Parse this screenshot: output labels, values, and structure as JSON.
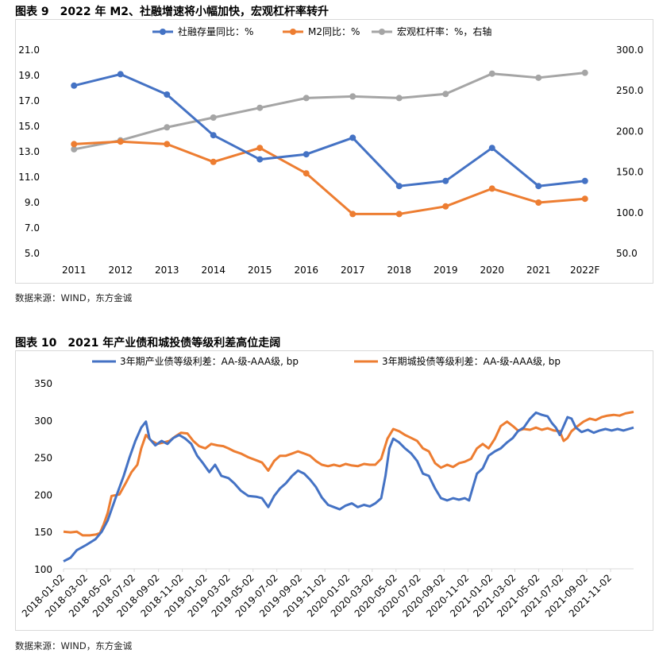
{
  "chart_data": [
    {
      "type": "line",
      "title": "图表 9　2022 年 M2、社融增速将小幅加快，宏观杠杆率转升",
      "source": "数据来源：WIND，东方金诚",
      "categories": [
        "2011",
        "2012",
        "2013",
        "2014",
        "2015",
        "2016",
        "2017",
        "2018",
        "2019",
        "2020",
        "2021",
        "2022F"
      ],
      "ylim": [
        5.0,
        21.0
      ],
      "yticks": [
        "21.0",
        "19.0",
        "17.0",
        "15.0",
        "13.0",
        "11.0",
        "9.0",
        "7.0",
        "5.0"
      ],
      "y2lim": [
        50.0,
        300.0
      ],
      "y2ticks": [
        "300.0",
        "250.0",
        "200.0",
        "150.0",
        "100.0",
        "50.0"
      ],
      "legend_position": "top",
      "grid": false,
      "series": [
        {
          "name": "社融存量同比：%",
          "axis": "left",
          "color": "#4472c4",
          "values": [
            18.2,
            19.1,
            17.5,
            14.3,
            12.4,
            12.8,
            14.1,
            10.3,
            10.7,
            13.3,
            10.3,
            10.7
          ]
        },
        {
          "name": "M2同比：%",
          "axis": "left",
          "color": "#ed7d31",
          "values": [
            13.6,
            13.8,
            13.6,
            12.2,
            13.3,
            11.3,
            8.1,
            8.1,
            8.7,
            10.1,
            9.0,
            9.3
          ]
        },
        {
          "name": "宏观杠杆率：%，右轴",
          "axis": "right",
          "color": "#a5a5a5",
          "values": [
            178,
            189,
            205,
            217,
            229,
            241,
            243,
            241,
            246,
            271,
            266,
            272
          ]
        }
      ]
    },
    {
      "type": "line",
      "title": "图表 10　2021 年产业债和城投债等级利差高位走阔",
      "source": "数据来源：WIND，东方金诚",
      "ylim": [
        100,
        350
      ],
      "yticks": [
        "350",
        "300",
        "250",
        "200",
        "150",
        "100"
      ],
      "xticks": [
        "2018-01-02",
        "2018-03-02",
        "2018-05-02",
        "2018-07-02",
        "2018-09-02",
        "2018-11-02",
        "2019-01-02",
        "2019-03-02",
        "2019-05-02",
        "2019-07-02",
        "2019-09-02",
        "2019-11-02",
        "2020-01-02",
        "2020-03-02",
        "2020-05-02",
        "2020-07-02",
        "2020-09-02",
        "2020-11-02",
        "2021-01-02",
        "2021-03-02",
        "2021-05-02",
        "2021-07-02",
        "2021-09-02",
        "2021-11-02"
      ],
      "x_end": "2021-12-31",
      "legend_position": "top",
      "grid": false,
      "series": [
        {
          "name": "3年期产业债等级利差：AA-级-AAA级, bp",
          "color": "#4472c4",
          "points": [
            [
              "2018-01-02",
              110
            ],
            [
              "2018-01-20",
              115
            ],
            [
              "2018-02-05",
              125
            ],
            [
              "2018-03-01",
              132
            ],
            [
              "2018-03-25",
              140
            ],
            [
              "2018-04-10",
              150
            ],
            [
              "2018-04-25",
              165
            ],
            [
              "2018-05-15",
              195
            ],
            [
              "2018-06-05",
              225
            ],
            [
              "2018-06-20",
              250
            ],
            [
              "2018-07-05",
              272
            ],
            [
              "2018-07-20",
              290
            ],
            [
              "2018-08-01",
              298
            ],
            [
              "2018-08-10",
              275
            ],
            [
              "2018-08-25",
              266
            ],
            [
              "2018-09-10",
              272
            ],
            [
              "2018-09-25",
              268
            ],
            [
              "2018-10-10",
              276
            ],
            [
              "2018-10-25",
              280
            ],
            [
              "2018-11-10",
              275
            ],
            [
              "2018-11-25",
              268
            ],
            [
              "2018-12-10",
              252
            ],
            [
              "2018-12-25",
              242
            ],
            [
              "2019-01-10",
              230
            ],
            [
              "2019-01-25",
              240
            ],
            [
              "2019-02-10",
              225
            ],
            [
              "2019-02-28",
              222
            ],
            [
              "2019-03-15",
              215
            ],
            [
              "2019-04-01",
              205
            ],
            [
              "2019-04-20",
              198
            ],
            [
              "2019-05-10",
              197
            ],
            [
              "2019-05-25",
              195
            ],
            [
              "2019-06-10",
              183
            ],
            [
              "2019-06-25",
              198
            ],
            [
              "2019-07-10",
              208
            ],
            [
              "2019-07-25",
              215
            ],
            [
              "2019-08-10",
              225
            ],
            [
              "2019-08-25",
              232
            ],
            [
              "2019-09-10",
              228
            ],
            [
              "2019-09-25",
              220
            ],
            [
              "2019-10-10",
              210
            ],
            [
              "2019-10-25",
              196
            ],
            [
              "2019-11-10",
              186
            ],
            [
              "2019-11-25",
              183
            ],
            [
              "2019-12-10",
              180
            ],
            [
              "2019-12-25",
              185
            ],
            [
              "2020-01-10",
              188
            ],
            [
              "2020-01-25",
              183
            ],
            [
              "2020-02-10",
              186
            ],
            [
              "2020-02-25",
              184
            ],
            [
              "2020-03-10",
              188
            ],
            [
              "2020-03-25",
              195
            ],
            [
              "2020-04-05",
              225
            ],
            [
              "2020-04-15",
              262
            ],
            [
              "2020-04-25",
              275
            ],
            [
              "2020-05-10",
              270
            ],
            [
              "2020-05-25",
              262
            ],
            [
              "2020-06-10",
              255
            ],
            [
              "2020-06-25",
              245
            ],
            [
              "2020-07-10",
              228
            ],
            [
              "2020-07-25",
              225
            ],
            [
              "2020-08-10",
              208
            ],
            [
              "2020-08-25",
              195
            ],
            [
              "2020-09-10",
              192
            ],
            [
              "2020-09-25",
              195
            ],
            [
              "2020-10-10",
              193
            ],
            [
              "2020-10-25",
              195
            ],
            [
              "2020-11-05",
              192
            ],
            [
              "2020-11-15",
              210
            ],
            [
              "2020-11-25",
              228
            ],
            [
              "2020-12-10",
              235
            ],
            [
              "2020-12-25",
              252
            ],
            [
              "2021-01-10",
              258
            ],
            [
              "2021-01-25",
              262
            ],
            [
              "2021-02-10",
              270
            ],
            [
              "2021-02-25",
              276
            ],
            [
              "2021-03-10",
              285
            ],
            [
              "2021-03-25",
              290
            ],
            [
              "2021-04-10",
              302
            ],
            [
              "2021-04-25",
              310
            ],
            [
              "2021-05-10",
              307
            ],
            [
              "2021-05-25",
              305
            ],
            [
              "2021-06-05",
              296
            ],
            [
              "2021-06-15",
              290
            ],
            [
              "2021-06-25",
              280
            ],
            [
              "2021-07-05",
              292
            ],
            [
              "2021-07-15",
              304
            ],
            [
              "2021-07-25",
              302
            ],
            [
              "2021-08-05",
              290
            ],
            [
              "2021-08-20",
              284
            ],
            [
              "2021-09-05",
              287
            ],
            [
              "2021-09-20",
              283
            ],
            [
              "2021-10-05",
              286
            ],
            [
              "2021-10-20",
              288
            ],
            [
              "2021-11-05",
              286
            ],
            [
              "2021-11-20",
              288
            ],
            [
              "2021-12-05",
              286
            ],
            [
              "2021-12-31",
              290
            ]
          ]
        },
        {
          "name": "3年期城投债等级利差：AA-级-AAA级, bp",
          "color": "#ed7d31",
          "points": [
            [
              "2018-01-02",
              150
            ],
            [
              "2018-01-20",
              149
            ],
            [
              "2018-02-05",
              150
            ],
            [
              "2018-02-20",
              145
            ],
            [
              "2018-03-10",
              145
            ],
            [
              "2018-03-25",
              146
            ],
            [
              "2018-04-05",
              148
            ],
            [
              "2018-04-15",
              160
            ],
            [
              "2018-04-25",
              175
            ],
            [
              "2018-05-05",
              198
            ],
            [
              "2018-05-25",
              200
            ],
            [
              "2018-06-10",
              215
            ],
            [
              "2018-06-25",
              230
            ],
            [
              "2018-07-10",
              240
            ],
            [
              "2018-07-20",
              262
            ],
            [
              "2018-08-01",
              280
            ],
            [
              "2018-08-15",
              272
            ],
            [
              "2018-08-30",
              268
            ],
            [
              "2018-09-15",
              270
            ],
            [
              "2018-09-30",
              272
            ],
            [
              "2018-10-15",
              278
            ],
            [
              "2018-10-30",
              283
            ],
            [
              "2018-11-15",
              282
            ],
            [
              "2018-11-30",
              272
            ],
            [
              "2018-12-15",
              265
            ],
            [
              "2018-12-31",
              262
            ],
            [
              "2019-01-15",
              268
            ],
            [
              "2019-01-31",
              266
            ],
            [
              "2019-02-15",
              265
            ],
            [
              "2019-02-28",
              262
            ],
            [
              "2019-03-15",
              258
            ],
            [
              "2019-04-01",
              255
            ],
            [
              "2019-04-20",
              250
            ],
            [
              "2019-05-10",
              246
            ],
            [
              "2019-05-25",
              243
            ],
            [
              "2019-06-10",
              232
            ],
            [
              "2019-06-25",
              245
            ],
            [
              "2019-07-10",
              252
            ],
            [
              "2019-07-25",
              252
            ],
            [
              "2019-08-10",
              255
            ],
            [
              "2019-08-25",
              258
            ],
            [
              "2019-09-10",
              255
            ],
            [
              "2019-09-25",
              252
            ],
            [
              "2019-10-10",
              245
            ],
            [
              "2019-10-25",
              240
            ],
            [
              "2019-11-10",
              238
            ],
            [
              "2019-11-25",
              240
            ],
            [
              "2019-12-10",
              238
            ],
            [
              "2019-12-25",
              241
            ],
            [
              "2020-01-10",
              239
            ],
            [
              "2020-01-25",
              238
            ],
            [
              "2020-02-10",
              241
            ],
            [
              "2020-02-25",
              240
            ],
            [
              "2020-03-10",
              240
            ],
            [
              "2020-03-25",
              248
            ],
            [
              "2020-04-10",
              275
            ],
            [
              "2020-04-25",
              288
            ],
            [
              "2020-05-10",
              285
            ],
            [
              "2020-05-25",
              280
            ],
            [
              "2020-06-10",
              276
            ],
            [
              "2020-06-25",
              272
            ],
            [
              "2020-07-10",
              262
            ],
            [
              "2020-07-25",
              258
            ],
            [
              "2020-08-10",
              242
            ],
            [
              "2020-08-25",
              236
            ],
            [
              "2020-09-10",
              240
            ],
            [
              "2020-09-25",
              237
            ],
            [
              "2020-10-10",
              242
            ],
            [
              "2020-10-25",
              244
            ],
            [
              "2020-11-10",
              248
            ],
            [
              "2020-11-25",
              262
            ],
            [
              "2020-12-10",
              268
            ],
            [
              "2020-12-25",
              262
            ],
            [
              "2021-01-10",
              275
            ],
            [
              "2021-01-25",
              292
            ],
            [
              "2021-02-10",
              298
            ],
            [
              "2021-02-25",
              292
            ],
            [
              "2021-03-10",
              286
            ],
            [
              "2021-03-25",
              288
            ],
            [
              "2021-04-10",
              287
            ],
            [
              "2021-04-25",
              290
            ],
            [
              "2021-05-10",
              287
            ],
            [
              "2021-05-25",
              289
            ],
            [
              "2021-06-10",
              286
            ],
            [
              "2021-06-25",
              285
            ],
            [
              "2021-07-05",
              272
            ],
            [
              "2021-07-15",
              276
            ],
            [
              "2021-07-25",
              285
            ],
            [
              "2021-08-10",
              292
            ],
            [
              "2021-08-25",
              298
            ],
            [
              "2021-09-10",
              302
            ],
            [
              "2021-09-25",
              300
            ],
            [
              "2021-10-10",
              304
            ],
            [
              "2021-10-25",
              306
            ],
            [
              "2021-11-10",
              307
            ],
            [
              "2021-11-25",
              306
            ],
            [
              "2021-12-10",
              309
            ],
            [
              "2021-12-31",
              311
            ]
          ]
        }
      ]
    }
  ]
}
